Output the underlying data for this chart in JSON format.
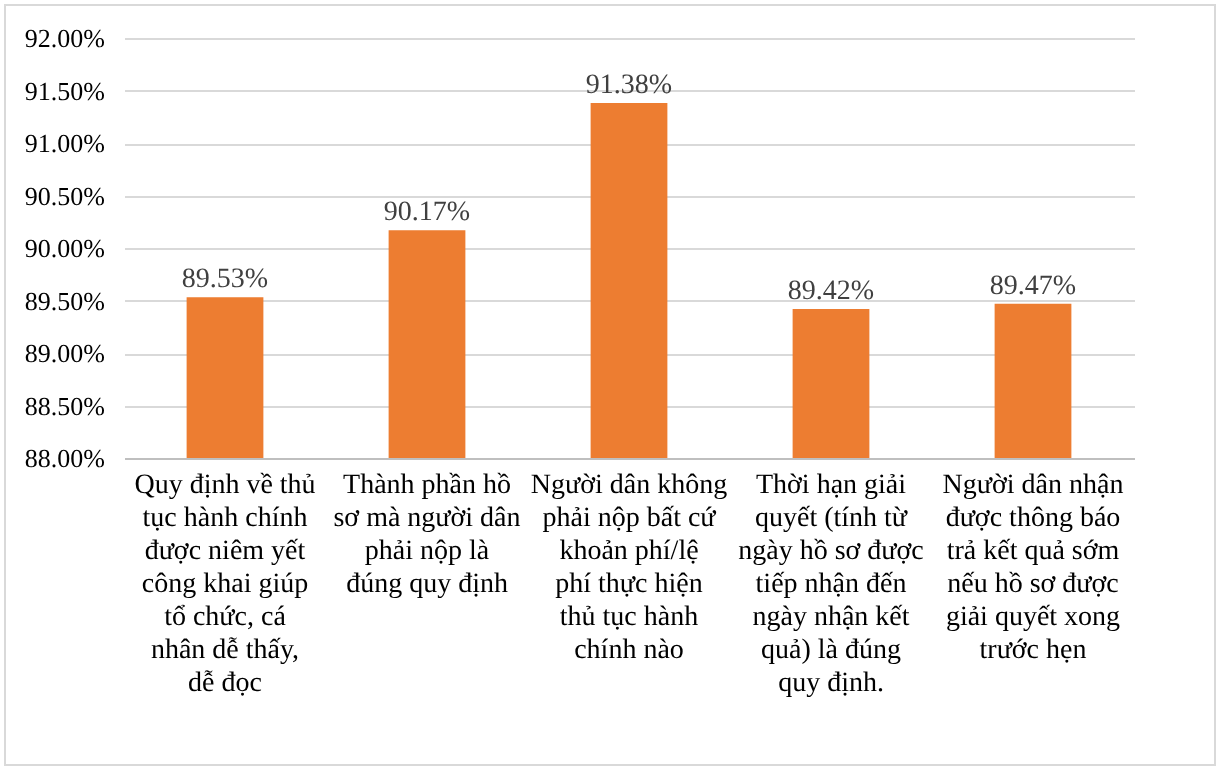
{
  "chart_data": {
    "type": "bar",
    "categories": [
      "Quy định về thủ tục hành chính được niêm yết công khai giúp tổ chức, cá nhân dễ thấy, dễ đọc",
      "Thành phần hồ sơ mà người dân phải nộp là đúng quy định",
      "Người dân không phải nộp bất cứ khoản phí/lệ phí thực hiện thủ tục hành chính nào",
      "Thời hạn giải quyết (tính từ ngày hồ sơ được tiếp nhận đến ngày nhận kết quả) là đúng quy định.",
      "Người dân nhận được thông báo trả kết quả sớm nếu hồ sơ được giải quyết xong trước hẹn"
    ],
    "values": [
      89.53,
      90.17,
      91.38,
      89.42,
      89.47
    ],
    "value_labels": [
      "89.53%",
      "90.17%",
      "91.38%",
      "89.42%",
      "89.47%"
    ],
    "color": "#ed7d31",
    "ylim": [
      88,
      92
    ],
    "yticks": [
      {
        "value": 88,
        "label": "88.00%"
      },
      {
        "value": 88.5,
        "label": "88.50%"
      },
      {
        "value": 89,
        "label": "89.00%"
      },
      {
        "value": 89.5,
        "label": "89.50%"
      },
      {
        "value": 90,
        "label": "90.00%"
      },
      {
        "value": 90.5,
        "label": "90.50%"
      },
      {
        "value": 91,
        "label": "91.00%"
      },
      {
        "value": 91.5,
        "label": "91.50%"
      },
      {
        "value": 92,
        "label": "92.00%"
      }
    ],
    "grid": "y"
  }
}
